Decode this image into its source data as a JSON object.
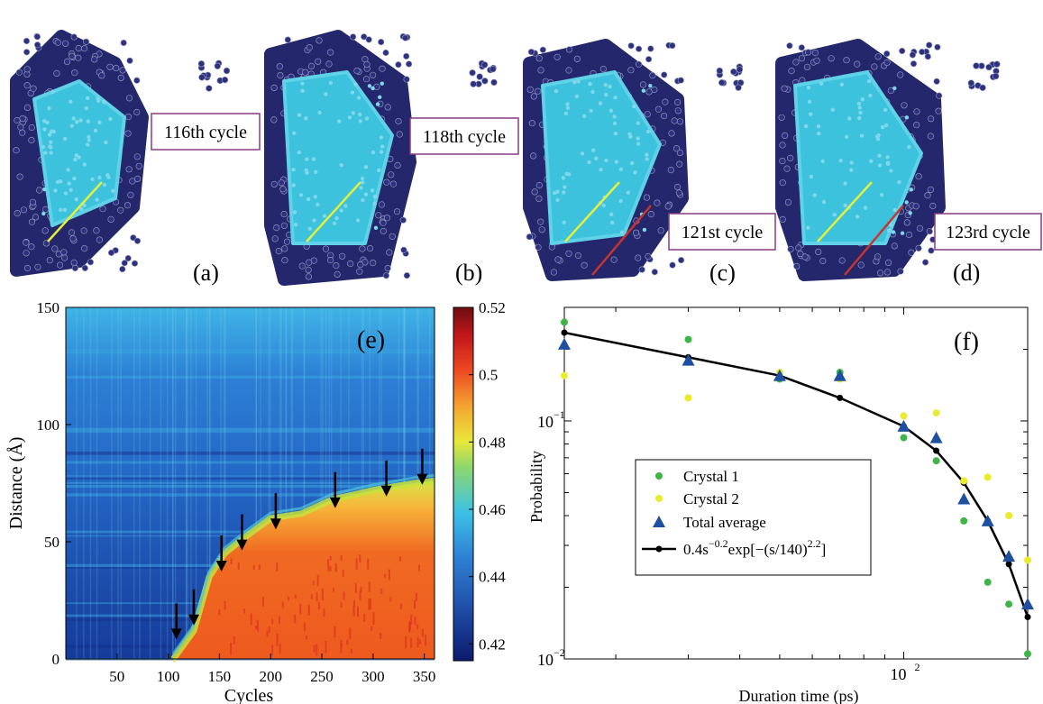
{
  "panels_top": [
    {
      "cycle_label": "116th cycle",
      "panel_label": "(a)",
      "red_line": false
    },
    {
      "cycle_label": "118th cycle",
      "panel_label": "(b)",
      "red_line": false
    },
    {
      "cycle_label": "121st cycle",
      "panel_label": "(c)",
      "red_line": true
    },
    {
      "cycle_label": "123rd cycle",
      "panel_label": "(d)",
      "red_line": true
    }
  ],
  "colors": {
    "crystal_atom": "#3cc2dd",
    "amorphous_atom": "#24276b",
    "label_border": "#8a3a86",
    "yellow_line": "#e6ef3a",
    "red_line": "#c8342e",
    "crystal1": "#3fb449",
    "crystal2": "#e8ec2d",
    "total_avg": "#1f4fa0",
    "fit": "#000000"
  },
  "chart_data": [
    {
      "panel": "(e)",
      "type": "heatmap",
      "xlabel": "Cycles",
      "ylabel": "Distance (Å)",
      "xlim": [
        0,
        360
      ],
      "ylim": [
        0,
        150
      ],
      "xticks": [
        "50",
        "100",
        "150",
        "200",
        "250",
        "300",
        "350"
      ],
      "yticks": [
        "0",
        "50",
        "100",
        "150"
      ],
      "colorbar": {
        "min": 0.415,
        "max": 0.52,
        "ticks": [
          "0.42",
          "0.44",
          "0.46",
          "0.48",
          "0.5",
          "0.52"
        ]
      },
      "front_boundary": [
        [
          105,
          0
        ],
        [
          125,
          12
        ],
        [
          140,
          35
        ],
        [
          155,
          45
        ],
        [
          175,
          52
        ],
        [
          200,
          60
        ],
        [
          230,
          62
        ],
        [
          260,
          68
        ],
        [
          300,
          72
        ],
        [
          340,
          75
        ],
        [
          360,
          76
        ]
      ],
      "arrows_cycles": [
        108,
        125,
        152,
        172,
        205,
        263,
        313,
        348
      ],
      "arrows_distance": [
        6,
        12,
        35,
        44,
        53,
        62,
        67,
        72
      ]
    },
    {
      "panel": "(f)",
      "type": "scatter",
      "xlabel": "Duration time (ps)",
      "ylabel": "Probability",
      "xscale": "log",
      "yscale": "log",
      "xlim": [
        15,
        200
      ],
      "ylim": [
        0.01,
        0.3
      ],
      "xticks": [
        {
          "value": 100,
          "base": "10",
          "exp": "2"
        }
      ],
      "yticks": [
        {
          "value": 0.1,
          "base": "10",
          "exp": "−1"
        },
        {
          "value": 0.01,
          "base": "10",
          "exp": "−2"
        }
      ],
      "legend": {
        "position": "center-left",
        "entries": [
          "Crystal 1",
          "Crystal 2",
          "Total average"
        ],
        "fit": {
          "pre": "0.4s",
          "exp1": "−0.2",
          "mid": "exp[−(s/140)",
          "exp2": "2.2",
          "post": "]"
        }
      },
      "series": [
        {
          "name": "Crystal 1",
          "marker": "dot",
          "x": [
            15,
            30,
            50,
            70,
            100,
            120,
            140,
            160,
            180,
            200
          ],
          "y": [
            0.26,
            0.22,
            0.15,
            0.16,
            0.085,
            0.068,
            0.038,
            0.021,
            0.017,
            0.0105
          ]
        },
        {
          "name": "Crystal 2",
          "marker": "dot",
          "x": [
            15,
            30,
            50,
            70,
            100,
            120,
            140,
            160,
            180,
            200
          ],
          "y": [
            0.155,
            0.125,
            0.16,
            0.15,
            0.105,
            0.108,
            0.056,
            0.058,
            0.04,
            0.026
          ]
        },
        {
          "name": "Total average",
          "marker": "triangle",
          "x": [
            15,
            30,
            50,
            70,
            100,
            120,
            140,
            160,
            180,
            200
          ],
          "y": [
            0.21,
            0.18,
            0.155,
            0.155,
            0.095,
            0.085,
            0.047,
            0.038,
            0.027,
            0.017
          ]
        },
        {
          "name": "0.4s^-0.2 exp[-(s/140)^2.2]",
          "marker": "line",
          "x": [
            15,
            30,
            50,
            70,
            100,
            120,
            140,
            160,
            180,
            200
          ],
          "y": [
            0.235,
            0.185,
            0.155,
            0.125,
            0.095,
            0.075,
            0.055,
            0.038,
            0.025,
            0.015
          ]
        }
      ]
    }
  ]
}
